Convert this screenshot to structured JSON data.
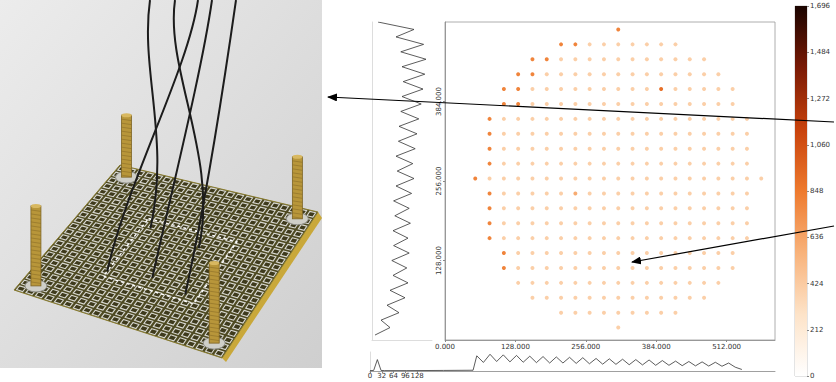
{
  "chart_data": [
    {
      "type": "heatmap",
      "xlim": [
        0,
        600
      ],
      "xticks": [
        {
          "value": 0,
          "label": "0.000"
        },
        {
          "value": 128,
          "label": "128.000"
        },
        {
          "value": 256,
          "label": "256.000"
        },
        {
          "value": 384,
          "label": "384.000"
        },
        {
          "value": 512,
          "label": "512.000"
        }
      ],
      "ylim": [
        0,
        512
      ],
      "yticks": [
        {
          "value": 128,
          "label": "128.000"
        },
        {
          "value": 256,
          "label": "256.000"
        },
        {
          "value": 384,
          "label": "384.000"
        }
      ],
      "grid": false,
      "marker": "circle",
      "cell_x": [
        55,
        81,
        107,
        133,
        159,
        185,
        211,
        237,
        263,
        289,
        315,
        341,
        367,
        393,
        419,
        445,
        471,
        497,
        523,
        549,
        575
      ],
      "cell_y": [
        500,
        476,
        452,
        428,
        404,
        380,
        356,
        332,
        308,
        284,
        260,
        236,
        212,
        188,
        164,
        140,
        116,
        92,
        68,
        44,
        20
      ],
      "cells": [
        [
          0,
          0,
          0,
          0,
          0,
          0,
          0,
          0,
          0,
          0,
          800,
          0,
          0,
          0,
          0,
          0,
          0,
          0,
          0,
          0,
          0
        ],
        [
          0,
          0,
          0,
          0,
          0,
          0,
          800,
          800,
          400,
          400,
          400,
          400,
          400,
          400,
          400,
          0,
          0,
          0,
          0,
          0,
          0
        ],
        [
          0,
          0,
          0,
          0,
          800,
          800,
          400,
          400,
          400,
          400,
          400,
          400,
          400,
          400,
          400,
          400,
          400,
          0,
          0,
          0,
          0
        ],
        [
          0,
          0,
          0,
          800,
          800,
          400,
          400,
          400,
          400,
          400,
          400,
          400,
          400,
          400,
          400,
          400,
          400,
          400,
          0,
          0,
          0
        ],
        [
          0,
          0,
          800,
          800,
          400,
          400,
          400,
          400,
          400,
          400,
          400,
          400,
          400,
          900,
          400,
          400,
          400,
          400,
          400,
          0,
          0
        ],
        [
          0,
          0,
          800,
          800,
          400,
          400,
          400,
          400,
          400,
          400,
          400,
          400,
          400,
          400,
          400,
          400,
          400,
          400,
          400,
          0,
          0
        ],
        [
          0,
          800,
          400,
          400,
          400,
          400,
          400,
          400,
          400,
          400,
          400,
          400,
          400,
          400,
          400,
          400,
          400,
          400,
          400,
          400,
          0
        ],
        [
          0,
          800,
          400,
          400,
          400,
          400,
          400,
          400,
          400,
          400,
          400,
          400,
          400,
          400,
          400,
          400,
          400,
          400,
          400,
          400,
          0
        ],
        [
          0,
          800,
          400,
          400,
          400,
          400,
          400,
          400,
          400,
          400,
          400,
          400,
          400,
          400,
          400,
          400,
          400,
          400,
          400,
          400,
          0
        ],
        [
          0,
          800,
          400,
          400,
          400,
          400,
          400,
          400,
          400,
          400,
          400,
          400,
          400,
          400,
          400,
          400,
          400,
          400,
          400,
          400,
          0
        ],
        [
          800,
          400,
          400,
          400,
          400,
          400,
          400,
          400,
          400,
          400,
          400,
          400,
          400,
          400,
          400,
          400,
          400,
          400,
          400,
          400,
          400
        ],
        [
          0,
          800,
          400,
          400,
          400,
          400,
          400,
          600,
          400,
          400,
          400,
          400,
          400,
          400,
          400,
          400,
          400,
          400,
          400,
          400,
          0
        ],
        [
          0,
          800,
          400,
          400,
          400,
          400,
          400,
          400,
          400,
          400,
          400,
          400,
          400,
          400,
          400,
          400,
          400,
          400,
          400,
          400,
          0
        ],
        [
          0,
          800,
          400,
          400,
          400,
          400,
          400,
          400,
          400,
          400,
          400,
          400,
          400,
          400,
          400,
          400,
          400,
          400,
          400,
          400,
          0
        ],
        [
          0,
          800,
          400,
          400,
          400,
          400,
          400,
          400,
          400,
          400,
          400,
          400,
          400,
          400,
          400,
          400,
          400,
          400,
          400,
          400,
          0
        ],
        [
          0,
          0,
          800,
          400,
          400,
          400,
          400,
          400,
          400,
          400,
          400,
          400,
          400,
          400,
          400,
          400,
          400,
          400,
          400,
          0,
          0
        ],
        [
          0,
          0,
          800,
          400,
          400,
          400,
          400,
          400,
          400,
          400,
          400,
          400,
          400,
          400,
          400,
          400,
          400,
          400,
          400,
          0,
          0
        ],
        [
          0,
          0,
          0,
          400,
          400,
          400,
          400,
          400,
          400,
          400,
          400,
          400,
          400,
          400,
          400,
          400,
          400,
          400,
          0,
          0,
          0
        ],
        [
          0,
          0,
          0,
          0,
          400,
          400,
          400,
          400,
          400,
          400,
          400,
          400,
          400,
          400,
          400,
          400,
          400,
          0,
          0,
          0,
          0
        ],
        [
          0,
          0,
          0,
          0,
          0,
          0,
          400,
          400,
          400,
          400,
          400,
          400,
          400,
          400,
          400,
          0,
          0,
          0,
          0,
          0,
          0
        ],
        [
          0,
          0,
          0,
          0,
          0,
          0,
          0,
          0,
          0,
          0,
          400,
          0,
          0,
          0,
          0,
          0,
          0,
          0,
          0,
          0,
          0
        ]
      ],
      "colorbar_lim": [
        0,
        1696
      ],
      "colorbar_ticks": [
        0,
        212,
        424,
        636,
        848,
        1060,
        1272,
        1484,
        1696
      ],
      "colorbar_colors": [
        "#ffffff",
        "#fde3c8",
        "#f8b27a",
        "#ee7a2e",
        "#c8420c",
        "#7a1a05",
        "#1a0400"
      ]
    },
    {
      "type": "line",
      "y": [
        8,
        20,
        32,
        44,
        56,
        68,
        80,
        92,
        104,
        116,
        128,
        140,
        152,
        164,
        176,
        188,
        200,
        212,
        224,
        236,
        248,
        260,
        272,
        284,
        296,
        308,
        320,
        332,
        344,
        356,
        368,
        380,
        392,
        404,
        416,
        428,
        440,
        452,
        464,
        476,
        488,
        500,
        512
      ],
      "values": [
        5,
        30,
        15,
        45,
        25,
        55,
        30,
        60,
        35,
        58,
        33,
        62,
        36,
        60,
        35,
        64,
        38,
        62,
        36,
        66,
        40,
        70,
        42,
        68,
        40,
        72,
        44,
        75,
        45,
        78,
        48,
        82,
        50,
        85,
        52,
        88,
        50,
        90,
        48,
        86,
        40,
        70,
        10
      ],
      "xlim": [
        0,
        100
      ],
      "ylim": [
        0,
        512
      ],
      "tick_labels": false,
      "color": "#333333"
    },
    {
      "type": "line",
      "x": [
        0,
        10,
        20,
        30,
        40,
        100,
        200,
        280,
        290,
        308,
        326,
        344,
        362,
        380,
        398,
        416,
        434,
        452,
        470,
        488,
        506,
        524,
        542,
        560,
        578,
        596,
        614,
        632,
        650,
        668,
        686,
        704,
        722,
        740,
        758,
        776,
        794,
        812,
        830,
        848,
        866,
        884,
        902,
        920,
        938,
        956,
        974,
        992,
        1010
      ],
      "values": [
        2,
        3,
        60,
        3,
        2,
        2,
        3,
        4,
        80,
        45,
        88,
        50,
        85,
        48,
        82,
        46,
        78,
        44,
        76,
        42,
        74,
        42,
        72,
        40,
        70,
        38,
        66,
        36,
        64,
        35,
        62,
        33,
        60,
        32,
        58,
        30,
        55,
        30,
        52,
        28,
        50,
        27,
        48,
        26,
        46,
        25,
        42,
        20,
        8
      ],
      "xlim": [
        0,
        1100
      ],
      "xticks": [
        0,
        32,
        64,
        96,
        128
      ],
      "ylim": [
        0,
        100
      ],
      "tick_labels": "x",
      "color": "#333333"
    }
  ]
}
